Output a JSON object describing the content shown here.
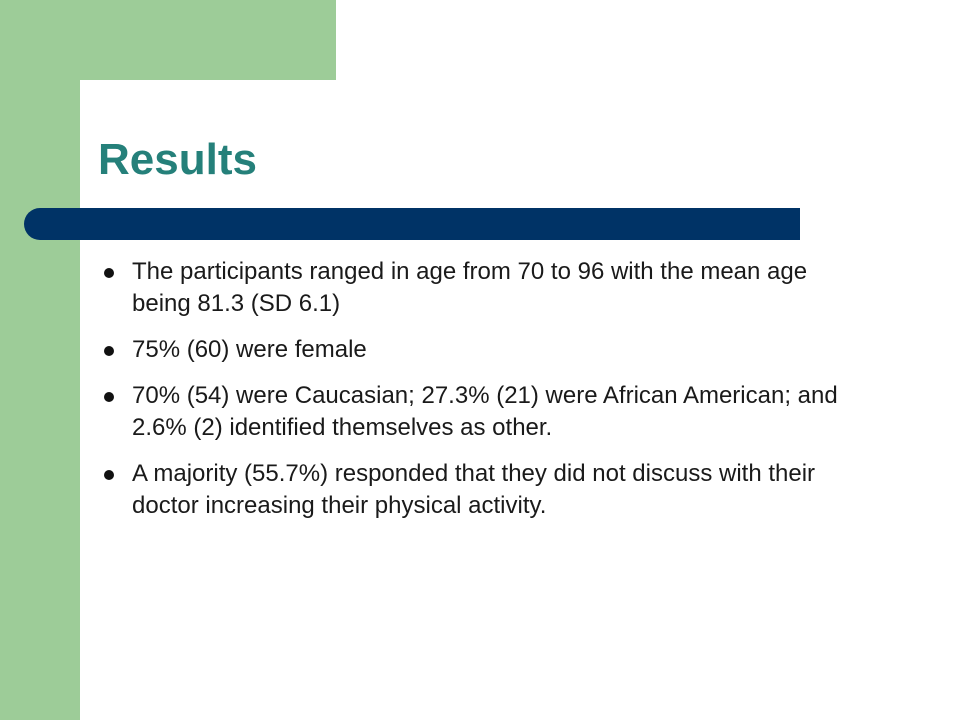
{
  "slide": {
    "title": "Results",
    "bullets": [
      "The participants ranged in age from 70 to 96 with the mean age being 81.3 (SD 6.1)",
      "75% (60) were female",
      "70% (54) were Caucasian; 27.3% (21) were African American; and 2.6% (2) identified themselves as other.",
      "A majority (55.7%) responded that they did not discuss with their doctor increasing their physical activity."
    ]
  },
  "colors": {
    "accent_green": "#9dcc98",
    "title_teal": "#25807a",
    "bar_navy": "#003366",
    "text": "#1a1a1a"
  }
}
